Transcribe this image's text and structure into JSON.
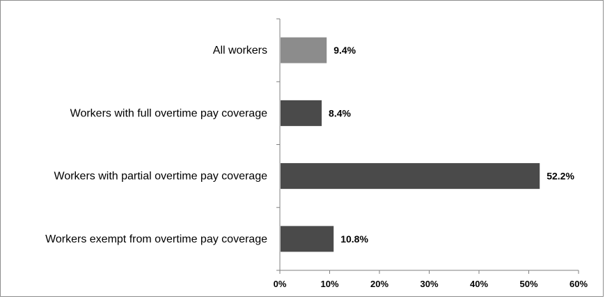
{
  "chart_data": {
    "type": "bar",
    "orientation": "horizontal",
    "categories": [
      "All workers",
      "Workers with full overtime pay coverage",
      "Workers with partial overtime pay coverage",
      "Workers exempt from overtime pay coverage"
    ],
    "values": [
      9.4,
      8.4,
      52.2,
      10.8
    ],
    "value_labels": [
      "9.4%",
      "8.4%",
      "52.2%",
      "10.8%"
    ],
    "bar_colors": [
      "#8c8c8c",
      "#4a4a4a",
      "#4a4a4a",
      "#4a4a4a"
    ],
    "xlim": [
      0,
      60
    ],
    "x_ticks": [
      0,
      10,
      20,
      30,
      40,
      50,
      60
    ],
    "x_tick_labels": [
      "0%",
      "10%",
      "20%",
      "30%",
      "40%",
      "50%",
      "60%"
    ],
    "title": "",
    "xlabel": "",
    "ylabel": "",
    "grid": false,
    "legend": false
  },
  "colors": {
    "axis": "#7f7f7f",
    "border": "#8c8c8c"
  }
}
